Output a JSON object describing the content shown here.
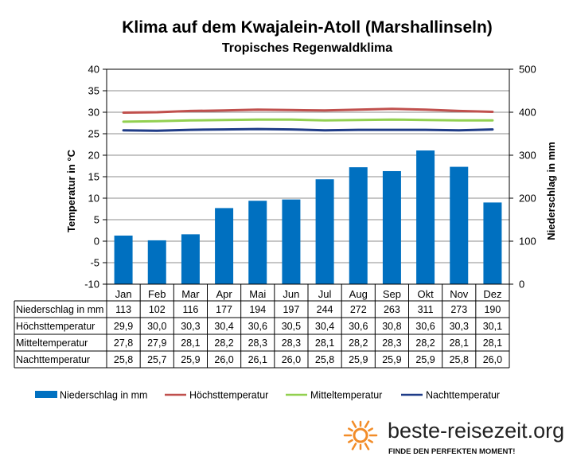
{
  "chart_data": {
    "type": "bar",
    "title": "Klima auf dem Kwajalein-Atoll (Marshallinseln)",
    "subtitle": "Tropisches Regenwaldklima",
    "ylabel": "Temperatur in °C",
    "y2label": "Niederschlag in mm",
    "ylim": [
      -10,
      40
    ],
    "y2lim": [
      0,
      500
    ],
    "yticks": [
      -10,
      -5,
      0,
      5,
      10,
      15,
      20,
      25,
      30,
      35,
      40
    ],
    "y2ticks": [
      0,
      100,
      200,
      300,
      400,
      500
    ],
    "grid": true,
    "legend_position": "bottom",
    "categories": [
      "Jan",
      "Feb",
      "Mar",
      "Apr",
      "Mai",
      "Jun",
      "Jul",
      "Aug",
      "Sep",
      "Okt",
      "Nov",
      "Dez"
    ],
    "series": [
      {
        "name": "Niederschlag in mm",
        "type": "bar",
        "axis": "right",
        "color": "#0070C0",
        "values": [
          113,
          102,
          116,
          177,
          194,
          197,
          244,
          272,
          263,
          311,
          273,
          190
        ],
        "labels": [
          "113",
          "102",
          "116",
          "177",
          "194",
          "197",
          "244",
          "272",
          "263",
          "311",
          "273",
          "190"
        ]
      },
      {
        "name": "Höchsttemperatur",
        "type": "line",
        "axis": "left",
        "color": "#C0504D",
        "values": [
          29.9,
          30.0,
          30.3,
          30.4,
          30.6,
          30.5,
          30.4,
          30.6,
          30.8,
          30.6,
          30.3,
          30.1
        ],
        "labels": [
          "29,9",
          "30,0",
          "30,3",
          "30,4",
          "30,6",
          "30,5",
          "30,4",
          "30,6",
          "30,8",
          "30,6",
          "30,3",
          "30,1"
        ]
      },
      {
        "name": "Mitteltemperatur",
        "type": "line",
        "axis": "left",
        "color": "#92D050",
        "values": [
          27.8,
          27.9,
          28.1,
          28.2,
          28.3,
          28.3,
          28.1,
          28.2,
          28.3,
          28.2,
          28.1,
          28.1
        ],
        "labels": [
          "27,8",
          "27,9",
          "28,1",
          "28,2",
          "28,3",
          "28,3",
          "28,1",
          "28,2",
          "28,3",
          "28,2",
          "28,1",
          "28,1"
        ]
      },
      {
        "name": "Nachttemperatur",
        "type": "line",
        "axis": "left",
        "color": "#1F3C88",
        "values": [
          25.8,
          25.7,
          25.9,
          26.0,
          26.1,
          26.0,
          25.8,
          25.9,
          25.9,
          25.9,
          25.8,
          26.0
        ],
        "labels": [
          "25,8",
          "25,7",
          "25,9",
          "26,0",
          "26,1",
          "26,0",
          "25,8",
          "25,9",
          "25,9",
          "25,9",
          "25,8",
          "26,0"
        ]
      }
    ]
  },
  "branding": {
    "name": "beste-reisezeit.org",
    "slogan": "FINDE DEN PERFEKTEN MOMENT!",
    "logo_icon": "sun-icon",
    "accent": "#F28C28"
  }
}
